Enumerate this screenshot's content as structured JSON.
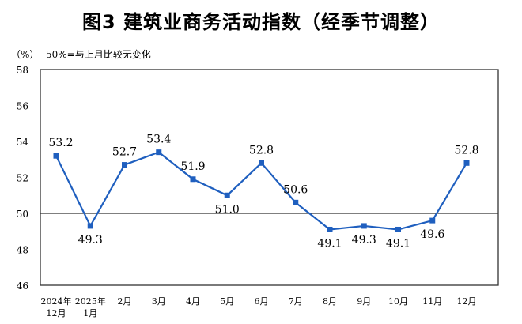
{
  "chart_data": {
    "type": "line",
    "title": "图3  建筑业商务活动指数（经季节调整）",
    "unit_label": "（%）",
    "note": "50%=与上月比较无变化",
    "categories": [
      [
        "2024年",
        "12月"
      ],
      [
        "2025年",
        "1月"
      ],
      [
        "2月"
      ],
      [
        "3月"
      ],
      [
        "4月"
      ],
      [
        "5月"
      ],
      [
        "6月"
      ],
      [
        "7月"
      ],
      [
        "8月"
      ],
      [
        "9月"
      ],
      [
        "10月"
      ],
      [
        "11月"
      ],
      [
        "12月"
      ]
    ],
    "series": [
      {
        "values": [
          53.2,
          49.3,
          52.7,
          53.4,
          51.9,
          51.0,
          52.8,
          50.6,
          49.1,
          49.3,
          49.1,
          49.6,
          52.8
        ]
      }
    ],
    "data_labels": [
      "53.2",
      "49.3",
      "52.7",
      "53.4",
      "51.9",
      "51.0",
      "52.8",
      "50.6",
      "49.1",
      "49.3",
      "49.1",
      "49.6",
      "52.8"
    ],
    "ylim": [
      46,
      58
    ],
    "yticks": [
      46,
      48,
      50,
      52,
      54,
      56,
      58
    ],
    "reference_line": 50,
    "grid": false,
    "line_color": "#1f5fbf"
  }
}
